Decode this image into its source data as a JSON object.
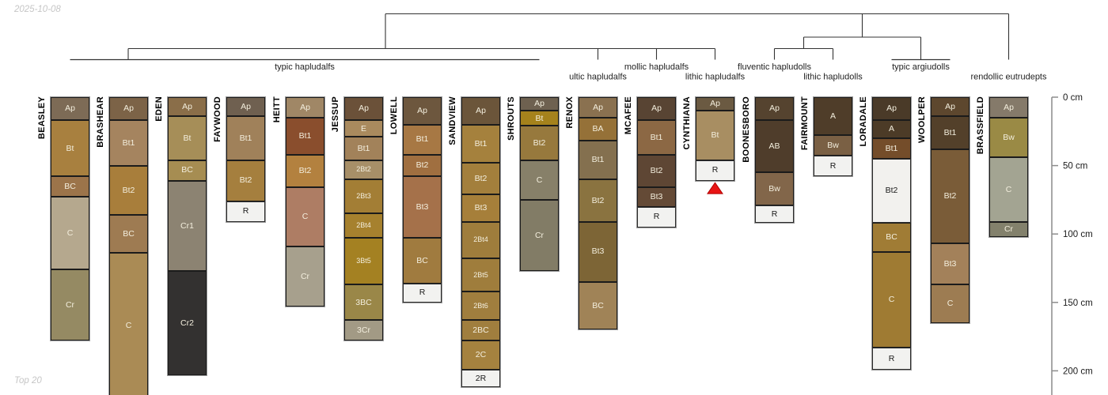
{
  "page": {
    "date_label": "2025-10-08",
    "footer_label": "Top 20"
  },
  "chart_data": {
    "type": "bar",
    "variant": "soil-horizon-depth-profiles-with-taxonomy-dendrogram",
    "depth_axis": {
      "unit": "cm",
      "ticks": [
        {
          "cm": 0,
          "label": "0 cm"
        },
        {
          "cm": 50,
          "label": "50 cm"
        },
        {
          "cm": 100,
          "label": "100 cm"
        },
        {
          "cm": 150,
          "label": "150 cm"
        },
        {
          "cm": 200,
          "label": "200 cm"
        }
      ]
    },
    "taxonomy_groups": [
      {
        "label": "typic hapludalfs",
        "row": 1,
        "anchor_x": 162,
        "members": [
          "BEASLEY",
          "BRASHEAR",
          "EDEN",
          "FAYWOOD",
          "HEITT",
          "JESSUP",
          "LOWELL",
          "SANDVIEW",
          "SHROUTS"
        ]
      },
      {
        "label": "ultic hapludalfs",
        "row": 2,
        "members": [
          "RENOX"
        ]
      },
      {
        "label": "mollic hapludalfs",
        "row": 1,
        "members": [
          "MCAFEE"
        ]
      },
      {
        "label": "lithic hapludalfs",
        "row": 2,
        "members": [
          "CYNTHIANA"
        ]
      },
      {
        "label": "fluventic hapludolls",
        "row": 1,
        "members": [
          "BOONESBORO"
        ]
      },
      {
        "label": "lithic hapludolls",
        "row": 2,
        "members": [
          "FAIRMOUNT"
        ]
      },
      {
        "label": "typic argiudolls",
        "row": 1,
        "members": [
          "LORADALE",
          "WOOLPER"
        ]
      },
      {
        "label": "rendollic eutrudepts",
        "row": 2,
        "members": [
          "BRASSFIELD"
        ]
      }
    ],
    "series": [
      {
        "name": "BEASLEY",
        "horizons": [
          {
            "label": "Ap",
            "top_cm": 0,
            "bottom_cm": 17,
            "color": "#7d6b56"
          },
          {
            "label": "Bt",
            "top_cm": 17,
            "bottom_cm": 58,
            "color": "#a8803f"
          },
          {
            "label": "BC",
            "top_cm": 58,
            "bottom_cm": 73,
            "color": "#9c744a"
          },
          {
            "label": "C",
            "top_cm": 73,
            "bottom_cm": 126,
            "color": "#b5a88e"
          },
          {
            "label": "Cr",
            "top_cm": 126,
            "bottom_cm": 178,
            "color": "#958a63"
          }
        ]
      },
      {
        "name": "BRASHEAR",
        "horizons": [
          {
            "label": "Ap",
            "top_cm": 0,
            "bottom_cm": 17,
            "color": "#7c6347"
          },
          {
            "label": "Bt1",
            "top_cm": 17,
            "bottom_cm": 50,
            "color": "#a5845f"
          },
          {
            "label": "Bt2",
            "top_cm": 50,
            "bottom_cm": 86,
            "color": "#a87e3b"
          },
          {
            "label": "BC",
            "top_cm": 86,
            "bottom_cm": 114,
            "color": "#9e7b52"
          },
          {
            "label": "C",
            "top_cm": 114,
            "bottom_cm": 220,
            "color": "#aa8b55"
          }
        ]
      },
      {
        "name": "EDEN",
        "horizons": [
          {
            "label": "Ap",
            "top_cm": 0,
            "bottom_cm": 14,
            "color": "#8a6e49"
          },
          {
            "label": "Bt",
            "top_cm": 14,
            "bottom_cm": 46,
            "color": "#a68e58"
          },
          {
            "label": "BC",
            "top_cm": 46,
            "bottom_cm": 61,
            "color": "#a68d52"
          },
          {
            "label": "Cr1",
            "top_cm": 61,
            "bottom_cm": 127,
            "color": "#8c8372"
          },
          {
            "label": "Cr2",
            "top_cm": 127,
            "bottom_cm": 203,
            "color": "#333130"
          }
        ]
      },
      {
        "name": "FAYWOOD",
        "horizons": [
          {
            "label": "Ap",
            "top_cm": 0,
            "bottom_cm": 14,
            "color": "#6f6050"
          },
          {
            "label": "Bt1",
            "top_cm": 14,
            "bottom_cm": 46,
            "color": "#a0815a"
          },
          {
            "label": "Bt2",
            "top_cm": 46,
            "bottom_cm": 76,
            "color": "#a57f3e"
          },
          {
            "label": "R",
            "top_cm": 76,
            "bottom_cm": 91,
            "color": "#f2f2f0"
          }
        ]
      },
      {
        "name": "HEITT",
        "horizons": [
          {
            "label": "Ap",
            "top_cm": 0,
            "bottom_cm": 15,
            "color": "#a08766"
          },
          {
            "label": "Bt1",
            "top_cm": 15,
            "bottom_cm": 42,
            "color": "#8a4e2d"
          },
          {
            "label": "Bt2",
            "top_cm": 42,
            "bottom_cm": 66,
            "color": "#b3813f"
          },
          {
            "label": "C",
            "top_cm": 66,
            "bottom_cm": 109,
            "color": "#ae7d64"
          },
          {
            "label": "Cr",
            "top_cm": 109,
            "bottom_cm": 153,
            "color": "#a7a08d"
          }
        ]
      },
      {
        "name": "JESSUP",
        "horizons": [
          {
            "label": "Ap",
            "top_cm": 0,
            "bottom_cm": 17,
            "color": "#6b5139"
          },
          {
            "label": "E",
            "top_cm": 17,
            "bottom_cm": 29,
            "color": "#a98a5e"
          },
          {
            "label": "Bt1",
            "top_cm": 29,
            "bottom_cm": 46,
            "color": "#a2825a"
          },
          {
            "label": "2Bt2",
            "top_cm": 46,
            "bottom_cm": 60,
            "color": "#a78f68"
          },
          {
            "label": "2Bt3",
            "top_cm": 60,
            "bottom_cm": 85,
            "color": "#a37e35"
          },
          {
            "label": "2Bt4",
            "top_cm": 85,
            "bottom_cm": 103,
            "color": "#a6812e"
          },
          {
            "label": "3Bt5",
            "top_cm": 103,
            "bottom_cm": 137,
            "color": "#a48122"
          },
          {
            "label": "3BC",
            "top_cm": 137,
            "bottom_cm": 163,
            "color": "#9a8748"
          },
          {
            "label": "3Cr",
            "top_cm": 163,
            "bottom_cm": 178,
            "color": "#a29a85"
          }
        ]
      },
      {
        "name": "LOWELL",
        "horizons": [
          {
            "label": "Ap",
            "top_cm": 0,
            "bottom_cm": 20,
            "color": "#6d573e"
          },
          {
            "label": "Bt1",
            "top_cm": 20,
            "bottom_cm": 42,
            "color": "#a77844"
          },
          {
            "label": "Bt2",
            "top_cm": 42,
            "bottom_cm": 58,
            "color": "#a06f40"
          },
          {
            "label": "Bt3",
            "top_cm": 58,
            "bottom_cm": 103,
            "color": "#a5714a"
          },
          {
            "label": "BC",
            "top_cm": 103,
            "bottom_cm": 136,
            "color": "#a07b3f"
          },
          {
            "label": "R",
            "top_cm": 136,
            "bottom_cm": 150,
            "color": "#f2f2f0"
          }
        ]
      },
      {
        "name": "SANDVIEW",
        "horizons": [
          {
            "label": "Ap",
            "top_cm": 0,
            "bottom_cm": 20,
            "color": "#6b553a"
          },
          {
            "label": "Bt1",
            "top_cm": 20,
            "bottom_cm": 48,
            "color": "#a5813d"
          },
          {
            "label": "Bt2",
            "top_cm": 48,
            "bottom_cm": 71,
            "color": "#a37f3c"
          },
          {
            "label": "Bt3",
            "top_cm": 71,
            "bottom_cm": 91,
            "color": "#a67f3a"
          },
          {
            "label": "2Bt4",
            "top_cm": 91,
            "bottom_cm": 118,
            "color": "#9f7d3c"
          },
          {
            "label": "2Bt5",
            "top_cm": 118,
            "bottom_cm": 142,
            "color": "#9f7d3c"
          },
          {
            "label": "2Bt6",
            "top_cm": 142,
            "bottom_cm": 163,
            "color": "#a07e3e"
          },
          {
            "label": "2BC",
            "top_cm": 163,
            "bottom_cm": 178,
            "color": "#a07e3e"
          },
          {
            "label": "2C",
            "top_cm": 178,
            "bottom_cm": 199,
            "color": "#a5823f"
          },
          {
            "label": "2R",
            "top_cm": 199,
            "bottom_cm": 212,
            "color": "#f2f2f0"
          }
        ]
      },
      {
        "name": "SHROUTS",
        "horizons": [
          {
            "label": "Ap",
            "top_cm": 0,
            "bottom_cm": 10,
            "color": "#6e6150"
          },
          {
            "label": "Bt",
            "top_cm": 10,
            "bottom_cm": 21,
            "color": "#a5821c"
          },
          {
            "label": "Bt2",
            "top_cm": 21,
            "bottom_cm": 46,
            "color": "#97793d"
          },
          {
            "label": "C",
            "top_cm": 46,
            "bottom_cm": 75,
            "color": "#878069"
          },
          {
            "label": "Cr",
            "top_cm": 75,
            "bottom_cm": 127,
            "color": "#827c66"
          }
        ]
      },
      {
        "name": "RENOX",
        "horizons": [
          {
            "label": "Ap",
            "top_cm": 0,
            "bottom_cm": 15,
            "color": "#8a7150"
          },
          {
            "label": "BA",
            "top_cm": 15,
            "bottom_cm": 32,
            "color": "#957138"
          },
          {
            "label": "Bt1",
            "top_cm": 32,
            "bottom_cm": 60,
            "color": "#84704f"
          },
          {
            "label": "Bt2",
            "top_cm": 60,
            "bottom_cm": 91,
            "color": "#8a7340"
          },
          {
            "label": "Bt3",
            "top_cm": 91,
            "bottom_cm": 135,
            "color": "#7d6536"
          },
          {
            "label": "BC",
            "top_cm": 135,
            "bottom_cm": 170,
            "color": "#a08357"
          }
        ]
      },
      {
        "name": "MCAFEE",
        "horizons": [
          {
            "label": "Ap",
            "top_cm": 0,
            "bottom_cm": 17,
            "color": "#584433"
          },
          {
            "label": "Bt1",
            "top_cm": 17,
            "bottom_cm": 42,
            "color": "#8c6844"
          },
          {
            "label": "Bt2",
            "top_cm": 42,
            "bottom_cm": 66,
            "color": "#5e4634"
          },
          {
            "label": "Bt3",
            "top_cm": 66,
            "bottom_cm": 80,
            "color": "#644a36"
          },
          {
            "label": "R",
            "top_cm": 80,
            "bottom_cm": 95,
            "color": "#f2f2f0"
          }
        ]
      },
      {
        "name": "CYNTHIANA",
        "horizons": [
          {
            "label": "Ap",
            "top_cm": 0,
            "bottom_cm": 10,
            "color": "#6b5a42"
          },
          {
            "label": "Bt",
            "top_cm": 10,
            "bottom_cm": 46,
            "color": "#a88e62"
          },
          {
            "label": "R",
            "top_cm": 46,
            "bottom_cm": 61,
            "color": "#f2f2f0"
          }
        ]
      },
      {
        "name": "BOONESBORO",
        "horizons": [
          {
            "label": "Ap",
            "top_cm": 0,
            "bottom_cm": 17,
            "color": "#55432f"
          },
          {
            "label": "AB",
            "top_cm": 17,
            "bottom_cm": 55,
            "color": "#4f3d2b"
          },
          {
            "label": "Bw",
            "top_cm": 55,
            "bottom_cm": 79,
            "color": "#82664a"
          },
          {
            "label": "R",
            "top_cm": 79,
            "bottom_cm": 92,
            "color": "#f2f2f0"
          }
        ]
      },
      {
        "name": "FAIRMOUNT",
        "horizons": [
          {
            "label": "A",
            "top_cm": 0,
            "bottom_cm": 28,
            "color": "#4f3d29"
          },
          {
            "label": "Bw",
            "top_cm": 28,
            "bottom_cm": 43,
            "color": "#7a6044"
          },
          {
            "label": "R",
            "top_cm": 43,
            "bottom_cm": 58,
            "color": "#f2f2f0"
          }
        ]
      },
      {
        "name": "LORADALE",
        "horizons": [
          {
            "label": "Ap",
            "top_cm": 0,
            "bottom_cm": 17,
            "color": "#4a3a28"
          },
          {
            "label": "A",
            "top_cm": 17,
            "bottom_cm": 30,
            "color": "#4c3b27"
          },
          {
            "label": "Bt1",
            "top_cm": 30,
            "bottom_cm": 45,
            "color": "#744d2a"
          },
          {
            "label": "Bt2",
            "top_cm": 45,
            "bottom_cm": 92,
            "color": "#f2f1ee"
          },
          {
            "label": "BC",
            "top_cm": 92,
            "bottom_cm": 113,
            "color": "#a07c35"
          },
          {
            "label": "C",
            "top_cm": 113,
            "bottom_cm": 183,
            "color": "#9f7b33"
          },
          {
            "label": "R",
            "top_cm": 183,
            "bottom_cm": 199,
            "color": "#f2f2f0"
          }
        ]
      },
      {
        "name": "WOOLPER",
        "horizons": [
          {
            "label": "Ap",
            "top_cm": 0,
            "bottom_cm": 14,
            "color": "#5d472e"
          },
          {
            "label": "Bt1",
            "top_cm": 14,
            "bottom_cm": 38,
            "color": "#53402a"
          },
          {
            "label": "Bt2",
            "top_cm": 38,
            "bottom_cm": 107,
            "color": "#7a5c38"
          },
          {
            "label": "Bt3",
            "top_cm": 107,
            "bottom_cm": 137,
            "color": "#a3815a"
          },
          {
            "label": "C",
            "top_cm": 137,
            "bottom_cm": 165,
            "color": "#9d7c52"
          }
        ]
      },
      {
        "name": "BRASSFIELD",
        "horizons": [
          {
            "label": "Ap",
            "top_cm": 0,
            "bottom_cm": 15,
            "color": "#857a6a"
          },
          {
            "label": "Bw",
            "top_cm": 15,
            "bottom_cm": 44,
            "color": "#9a8a45"
          },
          {
            "label": "C",
            "top_cm": 44,
            "bottom_cm": 91,
            "color": "#a3a492"
          },
          {
            "label": "Cr",
            "top_cm": 91,
            "bottom_cm": 102,
            "color": "#83816c"
          }
        ]
      }
    ],
    "markers": [
      {
        "series": "CYNTHIANA",
        "shape": "triangle-up",
        "fill": "#e81414",
        "stroke": "#b00000",
        "top_cm": 62.5,
        "height_cm": 8,
        "half_width_cm": 5.5
      }
    ]
  }
}
